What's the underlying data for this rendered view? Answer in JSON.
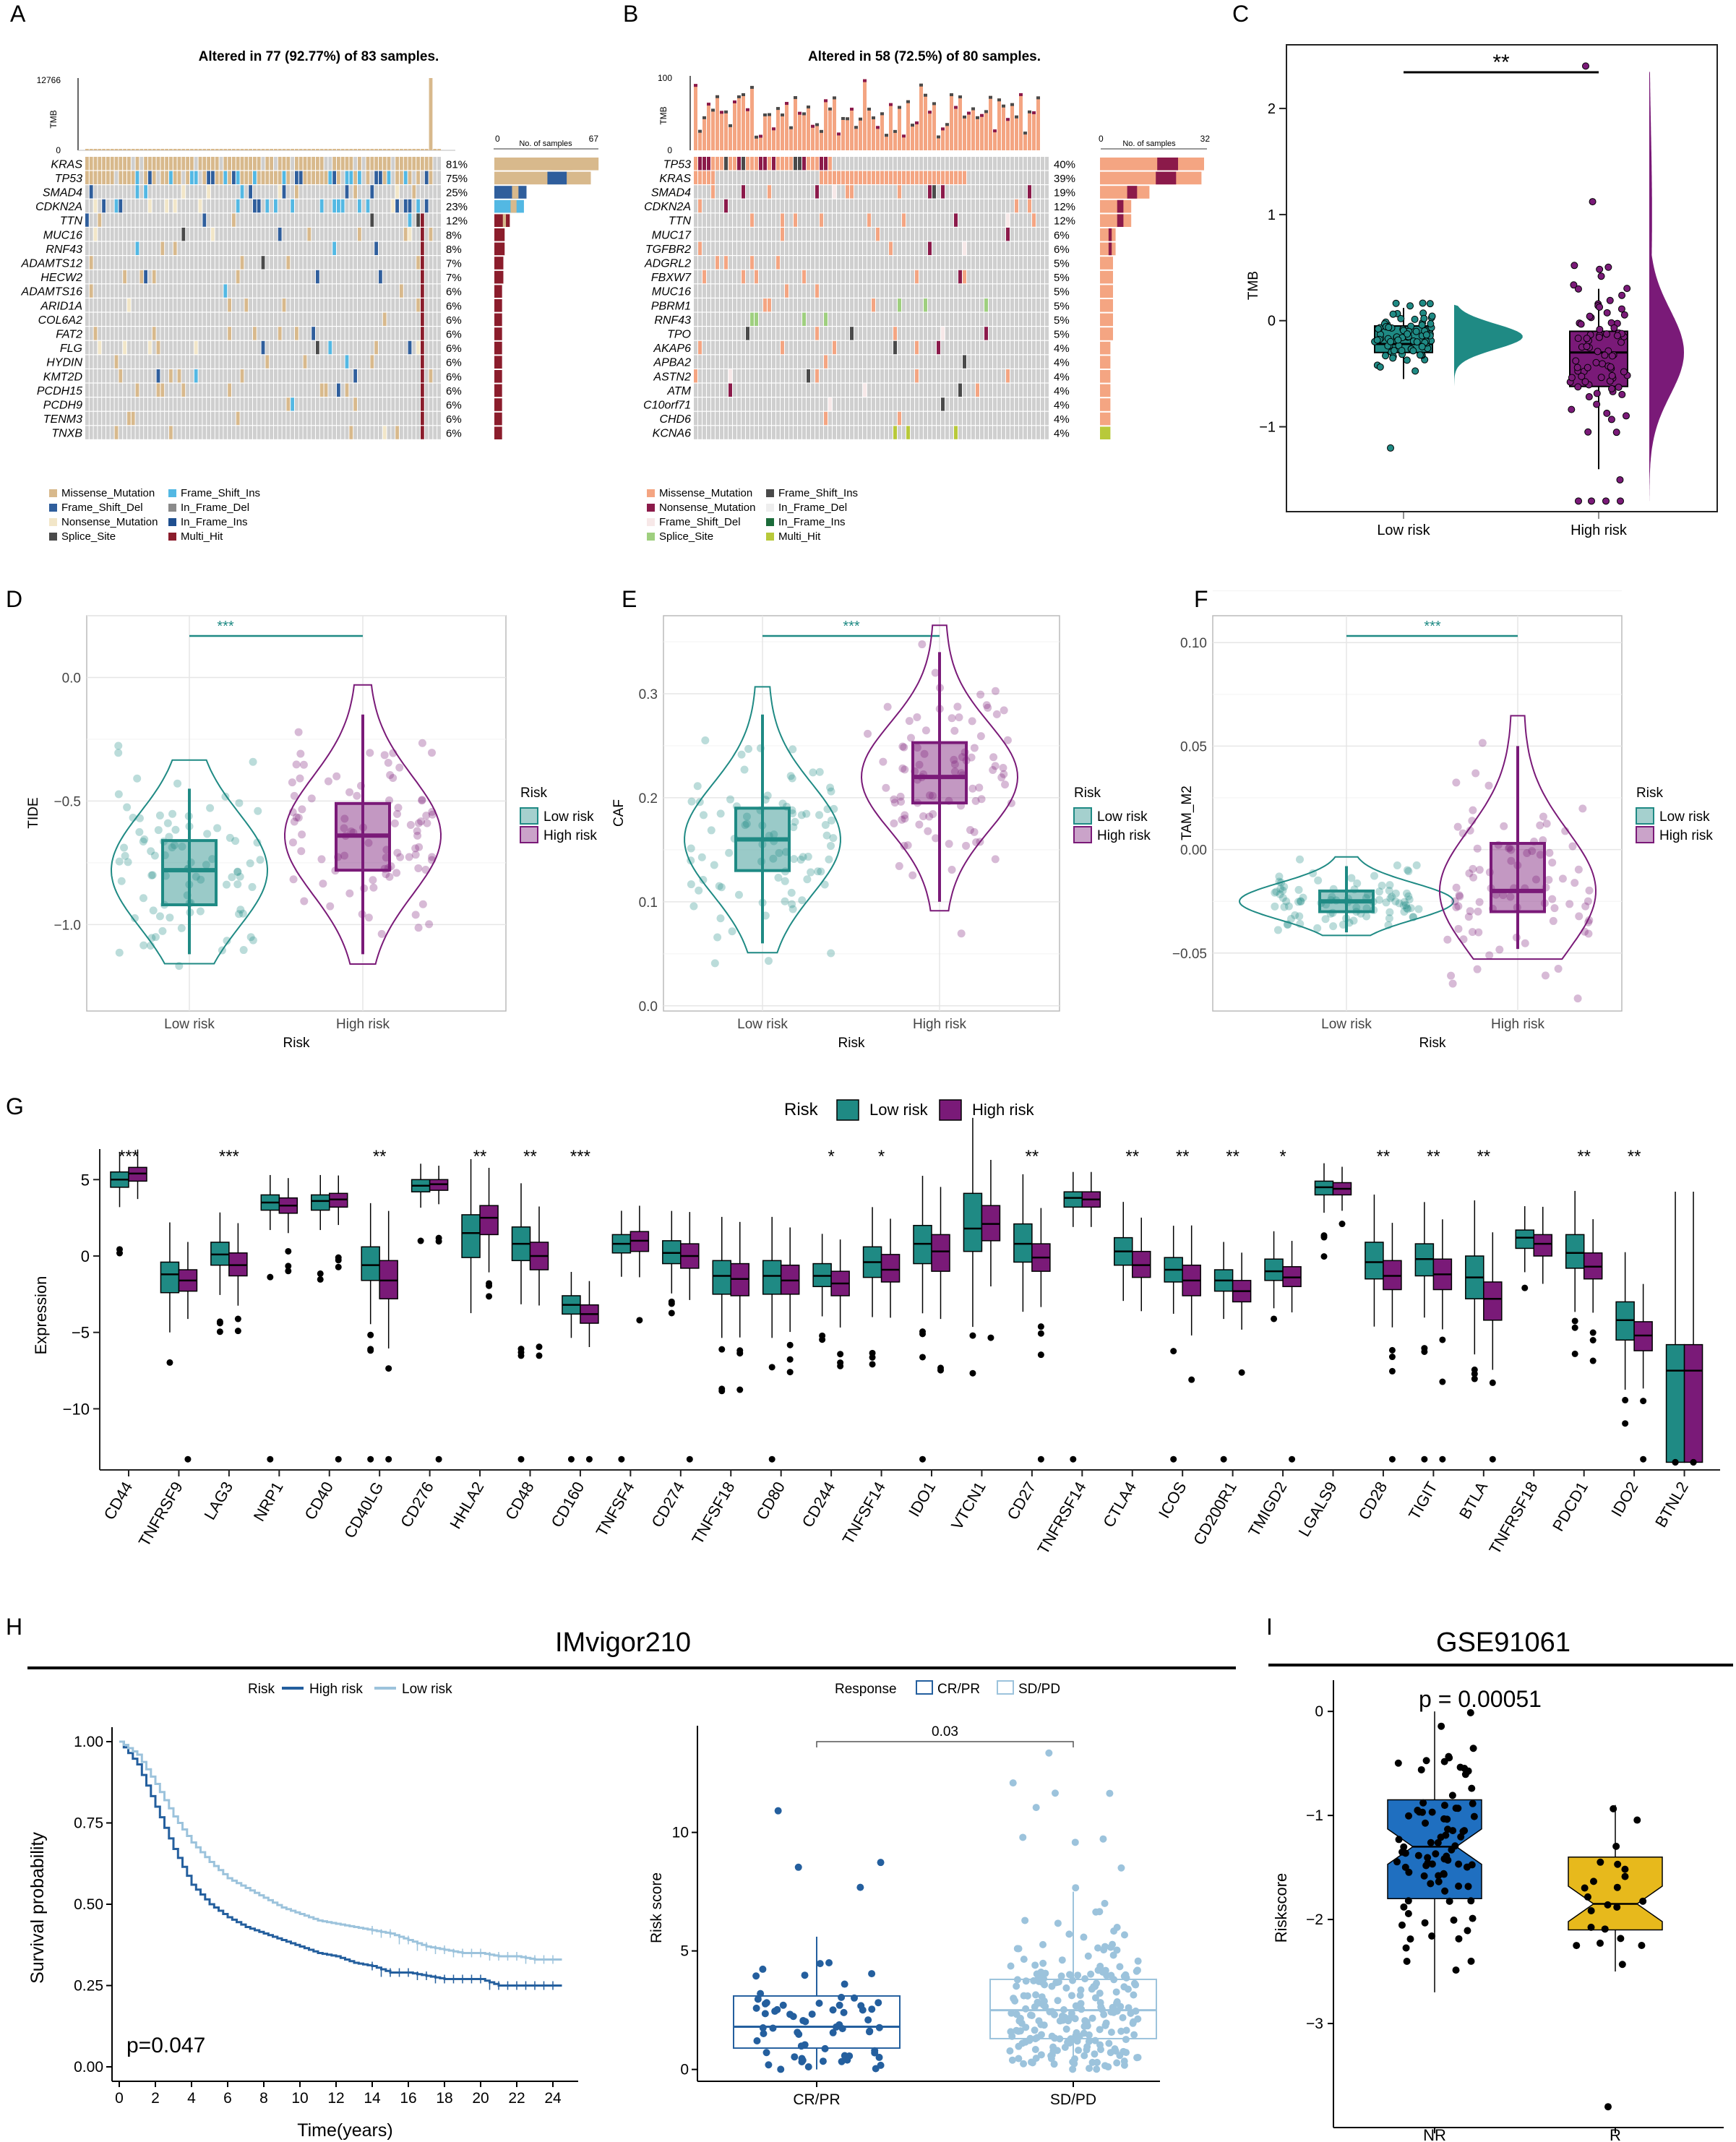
{
  "colors": {
    "low": "#1f8a84",
    "high": "#7a1a78",
    "tileGray": "#cfcfcf",
    "missense": "#d8b98c",
    "frameShiftDel": "#2f5e9c",
    "frameShiftIns": "#53b8e3",
    "nonsense": "#f2e6c8",
    "spliceSite": "#4a4a4a",
    "inFrameDel": "#8a8a8a",
    "inFrameIns": "#1f4f8f",
    "multiHit": "#8b1d2c",
    "bMissense": "#f4a582",
    "bNonsense": "#8b1a4a",
    "bFrameShiftDel": "#f7e8e8",
    "bSpliceSite": "#9fcf7f",
    "bFrameShiftIns": "#4a4a4a",
    "bInFrameDel": "#eeeeee",
    "bInFrameIns": "#1b6b3a",
    "bMultiHit": "#b8c93a",
    "hLow": "#9cc3dc",
    "hHigh": "#245f9e",
    "nr": "#1f6fc0",
    "r": "#e7b91c"
  },
  "panels": {
    "A": {
      "letter": "A",
      "title": "Altered in 77 (92.77%) of 83 samples.",
      "tmbLabel": "TMB",
      "tmbMax": "12766",
      "tmbMin": "0",
      "barAxisMin": "0",
      "barAxisMax": "67",
      "barAxisLabel": "No. of samples",
      "genes": [
        "KRAS",
        "TP53",
        "SMAD4",
        "CDKN2A",
        "TTN",
        "MUC16",
        "RNF43",
        "ADAMTS12",
        "HECW2",
        "ADAMTS16",
        "ARID1A",
        "COL6A2",
        "FAT2",
        "FLG",
        "HYDIN",
        "KMT2D",
        "PCDH15",
        "PCDH9",
        "TENM3",
        "TNXB"
      ],
      "percents": [
        "81%",
        "75%",
        "25%",
        "23%",
        "12%",
        "8%",
        "8%",
        "7%",
        "7%",
        "6%",
        "6%",
        "6%",
        "6%",
        "6%",
        "6%",
        "6%",
        "6%",
        "6%",
        "6%",
        "6%"
      ],
      "legend": [
        "Missense_Mutation",
        "Frame_Shift_Ins",
        "Frame_Shift_Del",
        "In_Frame_Del",
        "Nonsense_Mutation",
        "In_Frame_Ins",
        "Splice_Site",
        "Multi_Hit"
      ]
    },
    "B": {
      "letter": "B",
      "title": "Altered in 58 (72.5%) of 80 samples.",
      "tmbLabel": "TMB",
      "tmbMax": "100",
      "tmbMin": "0",
      "barAxisMin": "0",
      "barAxisMax": "32",
      "barAxisLabel": "No. of samples",
      "genes": [
        "TP53",
        "KRAS",
        "SMAD4",
        "CDKN2A",
        "TTN",
        "MUC17",
        "TGFBR2",
        "ADGRL2",
        "FBXW7",
        "MUC16",
        "PBRM1",
        "RNF43",
        "TPO",
        "AKAP6",
        "APBA2",
        "ASTN2",
        "ATM",
        "C10orf71",
        "CHD6",
        "KCNA6"
      ],
      "percents": [
        "40%",
        "39%",
        "19%",
        "12%",
        "12%",
        "6%",
        "6%",
        "5%",
        "5%",
        "5%",
        "5%",
        "5%",
        "5%",
        "4%",
        "4%",
        "4%",
        "4%",
        "4%",
        "4%",
        "4%"
      ],
      "legend": [
        "Missense_Mutation",
        "Frame_Shift_Ins",
        "Nonsense_Mutation",
        "In_Frame_Del",
        "Frame_Shift_Del",
        "In_Frame_Ins",
        "Splice_Site",
        "Multi_Hit"
      ]
    },
    "C": {
      "letter": "C",
      "sig": "**",
      "ylabel": "TMB",
      "xlabels": [
        "Low risk",
        "High risk"
      ],
      "yticks": [
        "2",
        "1",
        "0",
        "−1"
      ]
    },
    "D": {
      "letter": "D",
      "sig": "***",
      "ylabel": "TIDE",
      "xlabel": "Risk",
      "xlabels": [
        "Low risk",
        "High risk"
      ],
      "yticks": [
        "0.0",
        "−0.5",
        "−1.0"
      ],
      "legendTitle": "Risk",
      "legendItems": [
        "Low risk",
        "High risk"
      ]
    },
    "E": {
      "letter": "E",
      "sig": "***",
      "ylabel": "CAF",
      "xlabel": "Risk",
      "xlabels": [
        "Low risk",
        "High risk"
      ],
      "yticks": [
        "0.3",
        "0.2",
        "0.1",
        "0.0"
      ],
      "legendTitle": "Risk",
      "legendItems": [
        "Low risk",
        "High risk"
      ]
    },
    "F": {
      "letter": "F",
      "sig": "***",
      "ylabel": "TAM_M2",
      "xlabel": "Risk",
      "xlabels": [
        "Low risk",
        "High risk"
      ],
      "yticks": [
        "0.10",
        "0.05",
        "0.00",
        "−0.05"
      ],
      "legendTitle": "Risk",
      "legendItems": [
        "Low risk",
        "High risk"
      ]
    },
    "G": {
      "letter": "G",
      "legendTitle": "Risk",
      "legendItems": [
        "Low risk",
        "High risk"
      ],
      "ylabel": "Expression",
      "yticks": [
        "5",
        "0",
        "−5",
        "−10"
      ]
    },
    "H": {
      "letter": "H",
      "title": "IMvigor210",
      "kmLegendTitle": "Risk",
      "kmLegendItems": [
        "High risk",
        "Low risk"
      ],
      "kmYlabel": "Survival probability",
      "kmXlabel": "Time(years)",
      "pval": "p=0.047",
      "kmYticks": [
        "1.00",
        "0.75",
        "0.50",
        "0.25",
        "0.00"
      ],
      "kmXticks": [
        "0",
        "2",
        "4",
        "6",
        "8",
        "10",
        "12",
        "14",
        "16",
        "18",
        "20",
        "22",
        "24"
      ],
      "respLegendTitle": "Response",
      "respLegendItems": [
        "CR/PR",
        "SD/PD"
      ],
      "respYlabel": "Risk score",
      "respYticks": [
        "10",
        "5",
        "0"
      ],
      "respXlabels": [
        "CR/PR",
        "SD/PD"
      ],
      "respP": "0.03"
    },
    "I": {
      "letter": "I",
      "title": "GSE91061",
      "pval": "p = 0.00051",
      "ylabel": "Riskscore",
      "yticks": [
        "0",
        "−1",
        "−2",
        "−3"
      ],
      "xlabels": [
        "NR",
        "R"
      ]
    }
  },
  "chart_data": [
    {
      "type": "box",
      "panel": "C",
      "title": "",
      "ylabel": "TMB",
      "categories": [
        "Low risk",
        "High risk"
      ],
      "series": [
        {
          "name": "Low risk",
          "median": -0.22,
          "q1": -0.3,
          "q3": -0.05,
          "min": -0.55,
          "max": 0.12
        },
        {
          "name": "High risk",
          "median": -0.3,
          "q1": -0.62,
          "q3": -0.1,
          "min": -1.4,
          "max": 0.3
        }
      ],
      "ylim": [
        -1.8,
        2.6
      ],
      "annotation": "**"
    },
    {
      "type": "box",
      "panel": "D",
      "title": "",
      "ylabel": "TIDE",
      "xlabel": "Risk",
      "categories": [
        "Low risk",
        "High risk"
      ],
      "series": [
        {
          "name": "Low risk",
          "median": -0.78,
          "q1": -0.92,
          "q3": -0.66,
          "min": -1.12,
          "max": -0.45
        },
        {
          "name": "High risk",
          "median": -0.64,
          "q1": -0.78,
          "q3": -0.51,
          "min": -1.12,
          "max": -0.15
        }
      ],
      "ylim": [
        -1.35,
        0.25
      ],
      "annotation": "***"
    },
    {
      "type": "box",
      "panel": "E",
      "title": "",
      "ylabel": "CAF",
      "xlabel": "Risk",
      "categories": [
        "Low risk",
        "High risk"
      ],
      "series": [
        {
          "name": "Low risk",
          "median": 0.16,
          "q1": 0.13,
          "q3": 0.19,
          "min": 0.06,
          "max": 0.28
        },
        {
          "name": "High risk",
          "median": 0.22,
          "q1": 0.195,
          "q3": 0.253,
          "min": 0.1,
          "max": 0.34
        }
      ],
      "ylim": [
        -0.005,
        0.375
      ],
      "annotation": "***"
    },
    {
      "type": "box",
      "panel": "F",
      "title": "",
      "ylabel": "TAM_M2",
      "xlabel": "Risk",
      "categories": [
        "Low risk",
        "High risk"
      ],
      "series": [
        {
          "name": "Low risk",
          "median": -0.025,
          "q1": -0.03,
          "q3": -0.02,
          "min": -0.04,
          "max": -0.008
        },
        {
          "name": "High risk",
          "median": -0.02,
          "q1": -0.03,
          "q3": 0.003,
          "min": -0.048,
          "max": 0.05
        }
      ],
      "ylim": [
        -0.078,
        0.113
      ],
      "annotation": "***"
    },
    {
      "type": "box",
      "panel": "G",
      "ylabel": "Expression",
      "ylim": [
        -14,
        7
      ],
      "categories": [
        "CD44",
        "TNFRSF9",
        "LAG3",
        "NRP1",
        "CD40",
        "CD40LG",
        "CD276",
        "HHLA2",
        "CD48",
        "CD160",
        "TNFSF4",
        "CD274",
        "TNFSF18",
        "CD80",
        "CD244",
        "TNFSF14",
        "IDO1",
        "VTCN1",
        "CD27",
        "TNFRSF14",
        "CTLA4",
        "ICOS",
        "CD200R1",
        "TMIGD2",
        "LGALS9",
        "CD28",
        "TIGIT",
        "BTLA",
        "TNFRSF18",
        "PDCD1",
        "IDO2",
        "BTNL2"
      ],
      "significance": [
        "***",
        "",
        "***",
        "",
        "",
        "**",
        "",
        "**",
        "**",
        "***",
        "",
        "",
        "",
        "",
        "*",
        "*",
        "",
        "",
        "**",
        "",
        "**",
        "**",
        "**",
        "*",
        "",
        "**",
        "**",
        "**",
        "",
        "**",
        "**",
        ""
      ],
      "series": [
        {
          "name": "Low risk",
          "medians": [
            5.0,
            -1.2,
            0.1,
            3.5,
            3.6,
            -0.6,
            4.6,
            1.5,
            0.8,
            -3.2,
            0.8,
            0.2,
            -1.3,
            -1.3,
            -1.3,
            -0.4,
            0.8,
            1.8,
            0.8,
            3.8,
            0.3,
            -0.9,
            -1.6,
            -1.0,
            4.5,
            -0.4,
            -0.2,
            -1.4,
            1.2,
            0.2,
            -4.2,
            -7.5
          ],
          "q1": [
            4.5,
            -2.4,
            -0.6,
            3.0,
            3.0,
            -1.6,
            4.2,
            -0.1,
            -0.3,
            -3.8,
            0.2,
            -0.5,
            -2.5,
            -2.5,
            -2.0,
            -1.4,
            -0.5,
            0.3,
            -0.4,
            3.2,
            -0.6,
            -1.7,
            -2.3,
            -1.6,
            4.0,
            -1.5,
            -1.3,
            -2.8,
            0.5,
            -0.8,
            -5.5,
            -13.5
          ],
          "q3": [
            5.5,
            -0.4,
            0.9,
            4.0,
            4.0,
            0.6,
            5.0,
            2.7,
            1.9,
            -2.6,
            1.4,
            1.0,
            -0.3,
            -0.3,
            -0.5,
            0.6,
            2.0,
            4.1,
            2.1,
            4.2,
            1.2,
            -0.1,
            -0.9,
            -0.2,
            4.9,
            0.9,
            0.8,
            0.0,
            1.7,
            1.4,
            -3.0,
            -5.8
          ]
        },
        {
          "name": "High risk",
          "medians": [
            5.4,
            -1.6,
            -0.6,
            3.3,
            3.7,
            -1.6,
            4.7,
            2.5,
            0.0,
            -3.8,
            1.0,
            0.0,
            -1.5,
            -1.6,
            -1.8,
            -0.9,
            0.3,
            2.1,
            -0.1,
            3.7,
            -0.6,
            -1.6,
            -2.3,
            -1.4,
            4.4,
            -1.3,
            -1.2,
            -2.8,
            0.8,
            -0.7,
            -5.2,
            -7.5
          ],
          "q1": [
            4.9,
            -2.3,
            -1.3,
            2.8,
            3.2,
            -2.8,
            4.3,
            1.4,
            -0.9,
            -4.4,
            0.3,
            -0.8,
            -2.6,
            -2.5,
            -2.6,
            -1.7,
            -1.0,
            1.0,
            -1.0,
            3.2,
            -1.4,
            -2.6,
            -3.0,
            -2.0,
            4.0,
            -2.2,
            -2.2,
            -4.2,
            0.0,
            -1.5,
            -6.2,
            -13.5
          ],
          "q3": [
            5.8,
            -0.9,
            0.2,
            3.8,
            4.1,
            -0.3,
            5.0,
            3.3,
            0.9,
            -3.2,
            1.6,
            0.8,
            -0.5,
            -0.6,
            -1.0,
            0.1,
            1.4,
            3.3,
            0.8,
            4.2,
            0.3,
            -0.6,
            -1.6,
            -0.7,
            4.8,
            -0.3,
            -0.2,
            -1.7,
            1.4,
            0.2,
            -4.3,
            -5.8
          ]
        }
      ]
    },
    {
      "type": "line",
      "panel": "H-km",
      "title": "IMvigor210",
      "xlabel": "Time(years)",
      "ylabel": "Survival probability",
      "xlim": [
        0,
        25
      ],
      "ylim": [
        0,
        1
      ],
      "series": [
        {
          "name": "High risk",
          "x": [
            0,
            1,
            2,
            3,
            4,
            5,
            6,
            7,
            8,
            9,
            10,
            11,
            12,
            13,
            14,
            15,
            16,
            17,
            18,
            19,
            20,
            21,
            22,
            23,
            24,
            24.5
          ],
          "values": [
            1.0,
            0.93,
            0.8,
            0.67,
            0.56,
            0.5,
            0.46,
            0.43,
            0.41,
            0.39,
            0.37,
            0.35,
            0.34,
            0.32,
            0.31,
            0.29,
            0.29,
            0.28,
            0.27,
            0.27,
            0.27,
            0.25,
            0.25,
            0.25,
            0.25,
            0.25
          ]
        },
        {
          "name": "Low risk",
          "x": [
            0,
            1,
            2,
            3,
            4,
            5,
            6,
            7,
            8,
            9,
            10,
            11,
            12,
            13,
            14,
            15,
            16,
            17,
            18,
            19,
            20,
            21,
            22,
            23,
            24,
            24.5
          ],
          "values": [
            1.0,
            0.96,
            0.87,
            0.77,
            0.69,
            0.63,
            0.58,
            0.55,
            0.52,
            0.49,
            0.47,
            0.45,
            0.44,
            0.43,
            0.42,
            0.41,
            0.39,
            0.37,
            0.36,
            0.35,
            0.35,
            0.34,
            0.34,
            0.33,
            0.33,
            0.33
          ]
        }
      ],
      "annotation": "p=0.047"
    },
    {
      "type": "box",
      "panel": "H-response",
      "ylabel": "Risk score",
      "categories": [
        "CR/PR",
        "SD/PD"
      ],
      "ylim": [
        -0.5,
        14.5
      ],
      "series": [
        {
          "name": "CR/PR",
          "median": 1.8,
          "q1": 0.9,
          "q3": 3.1,
          "min": 0,
          "max": 5.6
        },
        {
          "name": "SD/PD",
          "median": 2.5,
          "q1": 1.3,
          "q3": 3.8,
          "min": 0,
          "max": 7.5
        }
      ],
      "annotation": "0.03"
    },
    {
      "type": "box",
      "panel": "I",
      "title": "GSE91061",
      "ylabel": "Riskscore",
      "categories": [
        "NR",
        "R"
      ],
      "ylim": [
        -4.0,
        0.3
      ],
      "series": [
        {
          "name": "NR",
          "median": -1.3,
          "q1": -1.8,
          "q3": -0.85,
          "min": -2.7,
          "max": 0.0
        },
        {
          "name": "R",
          "median": -1.85,
          "q1": -2.1,
          "q3": -1.4,
          "min": -2.5,
          "max": -0.9
        }
      ],
      "annotation": "p = 0.00051"
    }
  ]
}
